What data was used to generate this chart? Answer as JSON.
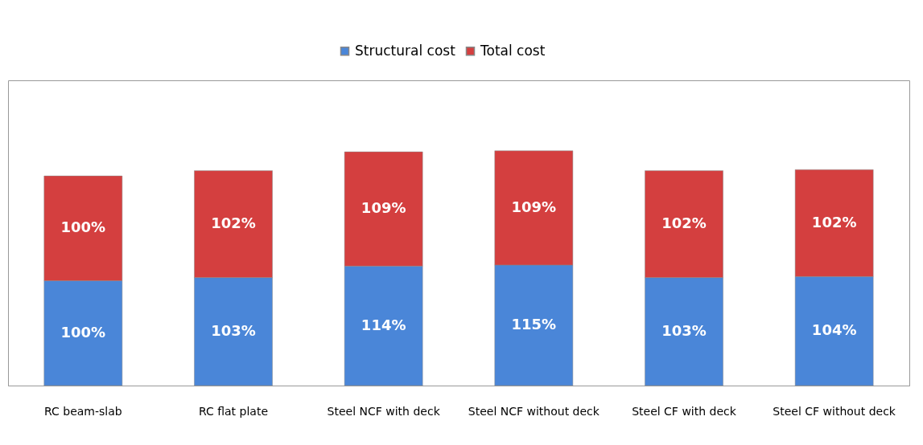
{
  "chart_data": {
    "type": "bar",
    "stacked": true,
    "legend": "top",
    "categories": [
      "RC beam-slab",
      "RC flat plate",
      "Steel NCF with deck",
      "Steel NCF without deck",
      "Steel CF with deck",
      "Steel CF without deck"
    ],
    "series": [
      {
        "name": "Structural cost",
        "color": "#4a86d8",
        "values": [
          100,
          103,
          114,
          115,
          103,
          104
        ],
        "value_labels": [
          "100%",
          "103%",
          "114%",
          "115%",
          "103%",
          "104%"
        ]
      },
      {
        "name": "Total cost",
        "color": "#d43f3f",
        "values": [
          100,
          102,
          109,
          109,
          102,
          102
        ],
        "value_labels": [
          "100%",
          "102%",
          "109%",
          "109%",
          "102%",
          "102%"
        ]
      }
    ]
  }
}
